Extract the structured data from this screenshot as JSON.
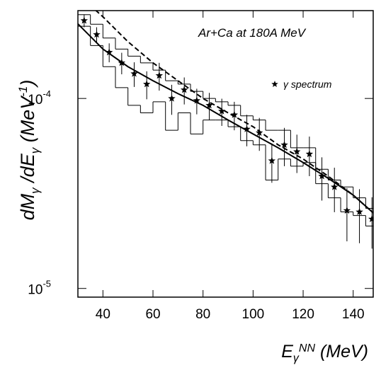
{
  "chart_data": {
    "type": "scatter",
    "annotation": "Ar+Ca at 180A MeV",
    "x_label_parts": [
      "E",
      "γ",
      "NN",
      " (MeV)"
    ],
    "y_label_parts": [
      "dM",
      "γ",
      " /dE",
      "γ",
      " (MeV",
      "-1",
      ")"
    ],
    "xlim": [
      30,
      148
    ],
    "ylim": [
      9e-06,
      0.00029
    ],
    "log_y": true,
    "xticks": [
      40,
      60,
      80,
      100,
      120,
      140
    ],
    "yticks": [
      {
        "value": 0.0001,
        "label": "10",
        "exponent": "-4"
      },
      {
        "value": 1e-05,
        "label": "10",
        "exponent": "-5"
      }
    ],
    "series": [
      {
        "name": "γ spectrum",
        "color": "#000000",
        "x": [
          32.5,
          37.5,
          42.5,
          47.5,
          52.5,
          57.5,
          62.5,
          67.5,
          72.5,
          77.5,
          82.5,
          87.5,
          92.5,
          97.5,
          102.5,
          107.5,
          112.5,
          117.5,
          122.5,
          127.5,
          132.5,
          137.5,
          142.5,
          147.5
        ],
        "values": [
          0.000257,
          0.000217,
          0.000175,
          0.000154,
          0.000135,
          0.000119,
          0.000132,
          0.0001,
          0.000111,
          9.75e-05,
          9.2e-05,
          8.57e-05,
          8.2e-05,
          6.9e-05,
          6.6e-05,
          4.7e-05,
          5.7e-05,
          5.25e-05,
          5.1e-05,
          3.9e-05,
          3.42e-05,
          2.57e-05,
          2.53e-05,
          2.32e-05
        ],
        "errors": [
          2e-05,
          2e-05,
          2e-05,
          2e-05,
          2e-05,
          2e-05,
          2.2e-05,
          1.8e-05,
          1.8e-05,
          1.5e-05,
          1.5e-05,
          1.4e-05,
          1.4e-05,
          1.3e-05,
          1.3e-05,
          1.1e-05,
          1.3e-05,
          1.2e-05,
          1.2e-05,
          1e-05,
          9e-06,
          8e-06,
          8e-06,
          7e-06
        ]
      }
    ],
    "band": {
      "bins": [
        30,
        35,
        40,
        45,
        50,
        55,
        60,
        65,
        70,
        75,
        80,
        85,
        90,
        95,
        100,
        105,
        110,
        115,
        120,
        125,
        130,
        135,
        140,
        145,
        150
      ],
      "upper": [
        0.000276,
        0.000246,
        0.000208,
        0.000182,
        0.000167,
        0.000154,
        0.000141,
        0.000124,
        0.000119,
        0.000109,
        0.0001,
        9.6e-05,
        9.2e-05,
        8.1e-05,
        7.7e-05,
        6.8e-05,
        6.8e-05,
        5.5e-05,
        5.5e-05,
        4.24e-05,
        3.72e-05,
        3.42e-05,
        3e-05,
        2.64e-05
      ],
      "lower": [
        0.00024,
        0.00019,
        0.000147,
        0.000114,
        9.2e-05,
        8.4e-05,
        9.6e-05,
        6.8e-05,
        8.4e-05,
        6.5e-05,
        7.7e-05,
        7.7e-05,
        7.1e-05,
        6e-05,
        5.7e-05,
        3.72e-05,
        4.8e-05,
        4.4e-05,
        4.6e-05,
        3.56e-05,
        3e-05,
        2.53e-05,
        2.42e-05,
        2.13e-05
      ]
    },
    "solid_curve": {
      "x": [
        30,
        40,
        50,
        60,
        70,
        80,
        90,
        100,
        110,
        120,
        130,
        140,
        148
      ],
      "values": [
        0.000247,
        0.000182,
        0.000147,
        0.000124,
        0.000106,
        9.2e-05,
        7.7e-05,
        6.5e-05,
        5.5e-05,
        4.6e-05,
        3.8e-05,
        3.1e-05,
        2.5e-05
      ]
    },
    "dashed_curve": {
      "x": [
        37,
        40,
        50,
        60,
        70,
        80,
        90,
        100,
        110,
        120,
        130,
        140,
        148
      ],
      "values": [
        0.000292,
        0.000269,
        0.000199,
        0.000154,
        0.000124,
        0.0001,
        8.4e-05,
        7.1e-05,
        5.7e-05,
        4.8e-05,
        3.9e-05,
        3.1e-05,
        2.5e-05
      ]
    }
  }
}
